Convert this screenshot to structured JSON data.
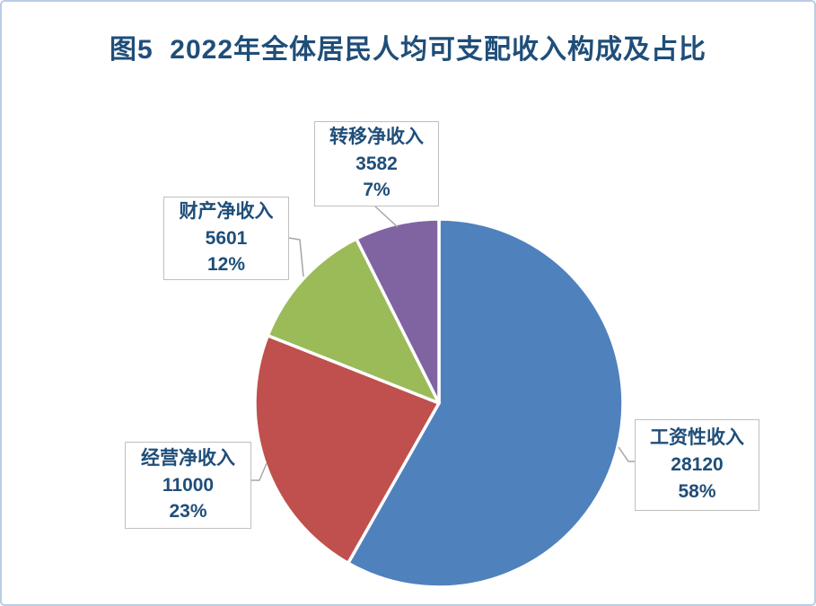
{
  "title": {
    "text": "图5  2022年全体居民人均可支配收入构成及占比",
    "color": "#1F4E79"
  },
  "chart_data": {
    "type": "pie",
    "title": "图5  2022年全体居民人均可支配收入构成及占比",
    "start_angle_deg": 0,
    "direction": "clockwise",
    "legend": "none",
    "slices": [
      {
        "label": "工资性收入",
        "value": 28120,
        "pct_label": "58%",
        "color": "#4F81BD"
      },
      {
        "label": "经营净收入",
        "value": 11000,
        "pct_label": "23%",
        "color": "#C0504D"
      },
      {
        "label": "财产净收入",
        "value": 5601,
        "pct_label": "12%",
        "color": "#9BBB59"
      },
      {
        "label": "转移净收入",
        "value": 3582,
        "pct_label": "7%",
        "color": "#8064A2"
      }
    ],
    "label_text_color": "#1F4E79",
    "label_box_border_color": "#BFBFBF",
    "leader_line_color": "#A6A6A6",
    "frame_border_color": "#B9CDE5",
    "slice_separator_color": "#FFFFFF"
  }
}
